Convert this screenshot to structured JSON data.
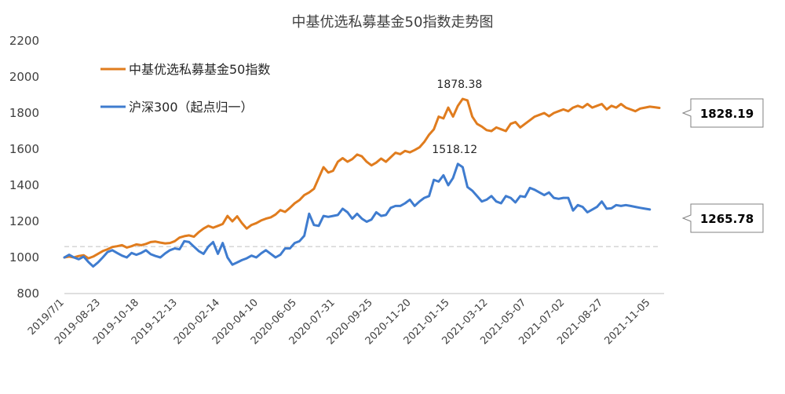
{
  "chart_data": {
    "type": "line",
    "title": "中基优选私募基金50指数走势图",
    "ylim": [
      800,
      2200
    ],
    "yticks": [
      800,
      1000,
      1200,
      1400,
      1600,
      1800,
      2000,
      2200
    ],
    "xticks": [
      "2019/7/1",
      "2019-08-23",
      "2019-10-18",
      "2019-12-13",
      "2020-02-14",
      "2020-04-10",
      "2020-06-05",
      "2020-07-31",
      "2020-09-25",
      "2020-11-20",
      "2021-01-15",
      "2021-03-12",
      "2021-05-07",
      "2021-07-02",
      "2021-08-27",
      "2021-11-05"
    ],
    "xtick_positions": [
      0,
      7.57,
      15.57,
      23.57,
      32.43,
      40.43,
      48.43,
      56.43,
      64.29,
      72.29,
      80.29,
      88.29,
      96.29,
      104.29,
      112.29,
      122.14
    ],
    "reference_line": 1060,
    "legend_position": "top-left",
    "series": [
      {
        "name": "中基优选私募基金50指数",
        "color": "#E07C1E",
        "last_value_label": "1828.19",
        "peak_label": "1878.38",
        "peak_index": 83,
        "values": [
          1000,
          1005,
          1000,
          1008,
          1012,
          995,
          1005,
          1020,
          1035,
          1045,
          1058,
          1062,
          1068,
          1055,
          1062,
          1072,
          1068,
          1075,
          1085,
          1088,
          1082,
          1078,
          1080,
          1090,
          1110,
          1118,
          1122,
          1115,
          1140,
          1160,
          1175,
          1165,
          1175,
          1185,
          1230,
          1200,
          1228,
          1190,
          1160,
          1180,
          1190,
          1205,
          1215,
          1222,
          1238,
          1262,
          1252,
          1275,
          1300,
          1318,
          1345,
          1360,
          1380,
          1440,
          1500,
          1470,
          1480,
          1530,
          1550,
          1530,
          1545,
          1570,
          1560,
          1530,
          1510,
          1525,
          1548,
          1530,
          1555,
          1580,
          1572,
          1590,
          1582,
          1595,
          1610,
          1640,
          1680,
          1710,
          1780,
          1770,
          1830,
          1780,
          1840,
          1878.38,
          1870,
          1780,
          1740,
          1725,
          1705,
          1700,
          1720,
          1710,
          1700,
          1740,
          1750,
          1720,
          1740,
          1760,
          1780,
          1790,
          1800,
          1782,
          1800,
          1810,
          1820,
          1810,
          1830,
          1840,
          1830,
          1850,
          1830,
          1840,
          1850,
          1820,
          1840,
          1830,
          1850,
          1830,
          1820,
          1810,
          1825,
          1830,
          1835,
          1832,
          1828.19
        ]
      },
      {
        "name": "沪深300（起点归一）",
        "color": "#3F7CCF",
        "last_value_label": "1265.78",
        "peak_label": "1518.12",
        "peak_index": 82,
        "values": [
          1000,
          1015,
          1000,
          990,
          1005,
          975,
          950,
          972,
          1000,
          1030,
          1040,
          1025,
          1010,
          1000,
          1025,
          1015,
          1025,
          1040,
          1018,
          1008,
          1000,
          1022,
          1040,
          1050,
          1045,
          1090,
          1085,
          1060,
          1035,
          1020,
          1060,
          1085,
          1020,
          1080,
          1000,
          960,
          972,
          985,
          995,
          1010,
          1000,
          1022,
          1040,
          1020,
          1000,
          1015,
          1050,
          1050,
          1080,
          1090,
          1120,
          1242,
          1180,
          1175,
          1230,
          1225,
          1230,
          1235,
          1270,
          1250,
          1215,
          1242,
          1215,
          1198,
          1210,
          1250,
          1230,
          1235,
          1275,
          1285,
          1285,
          1300,
          1320,
          1285,
          1310,
          1330,
          1340,
          1430,
          1420,
          1455,
          1400,
          1440,
          1518.12,
          1500,
          1390,
          1370,
          1340,
          1310,
          1320,
          1340,
          1310,
          1300,
          1340,
          1330,
          1305,
          1340,
          1335,
          1385,
          1375,
          1360,
          1345,
          1360,
          1330,
          1325,
          1330,
          1330,
          1260,
          1290,
          1280,
          1250,
          1265,
          1280,
          1310,
          1270,
          1272,
          1290,
          1285,
          1290,
          1285,
          1280,
          1275,
          1270,
          1265.78
        ]
      }
    ]
  }
}
